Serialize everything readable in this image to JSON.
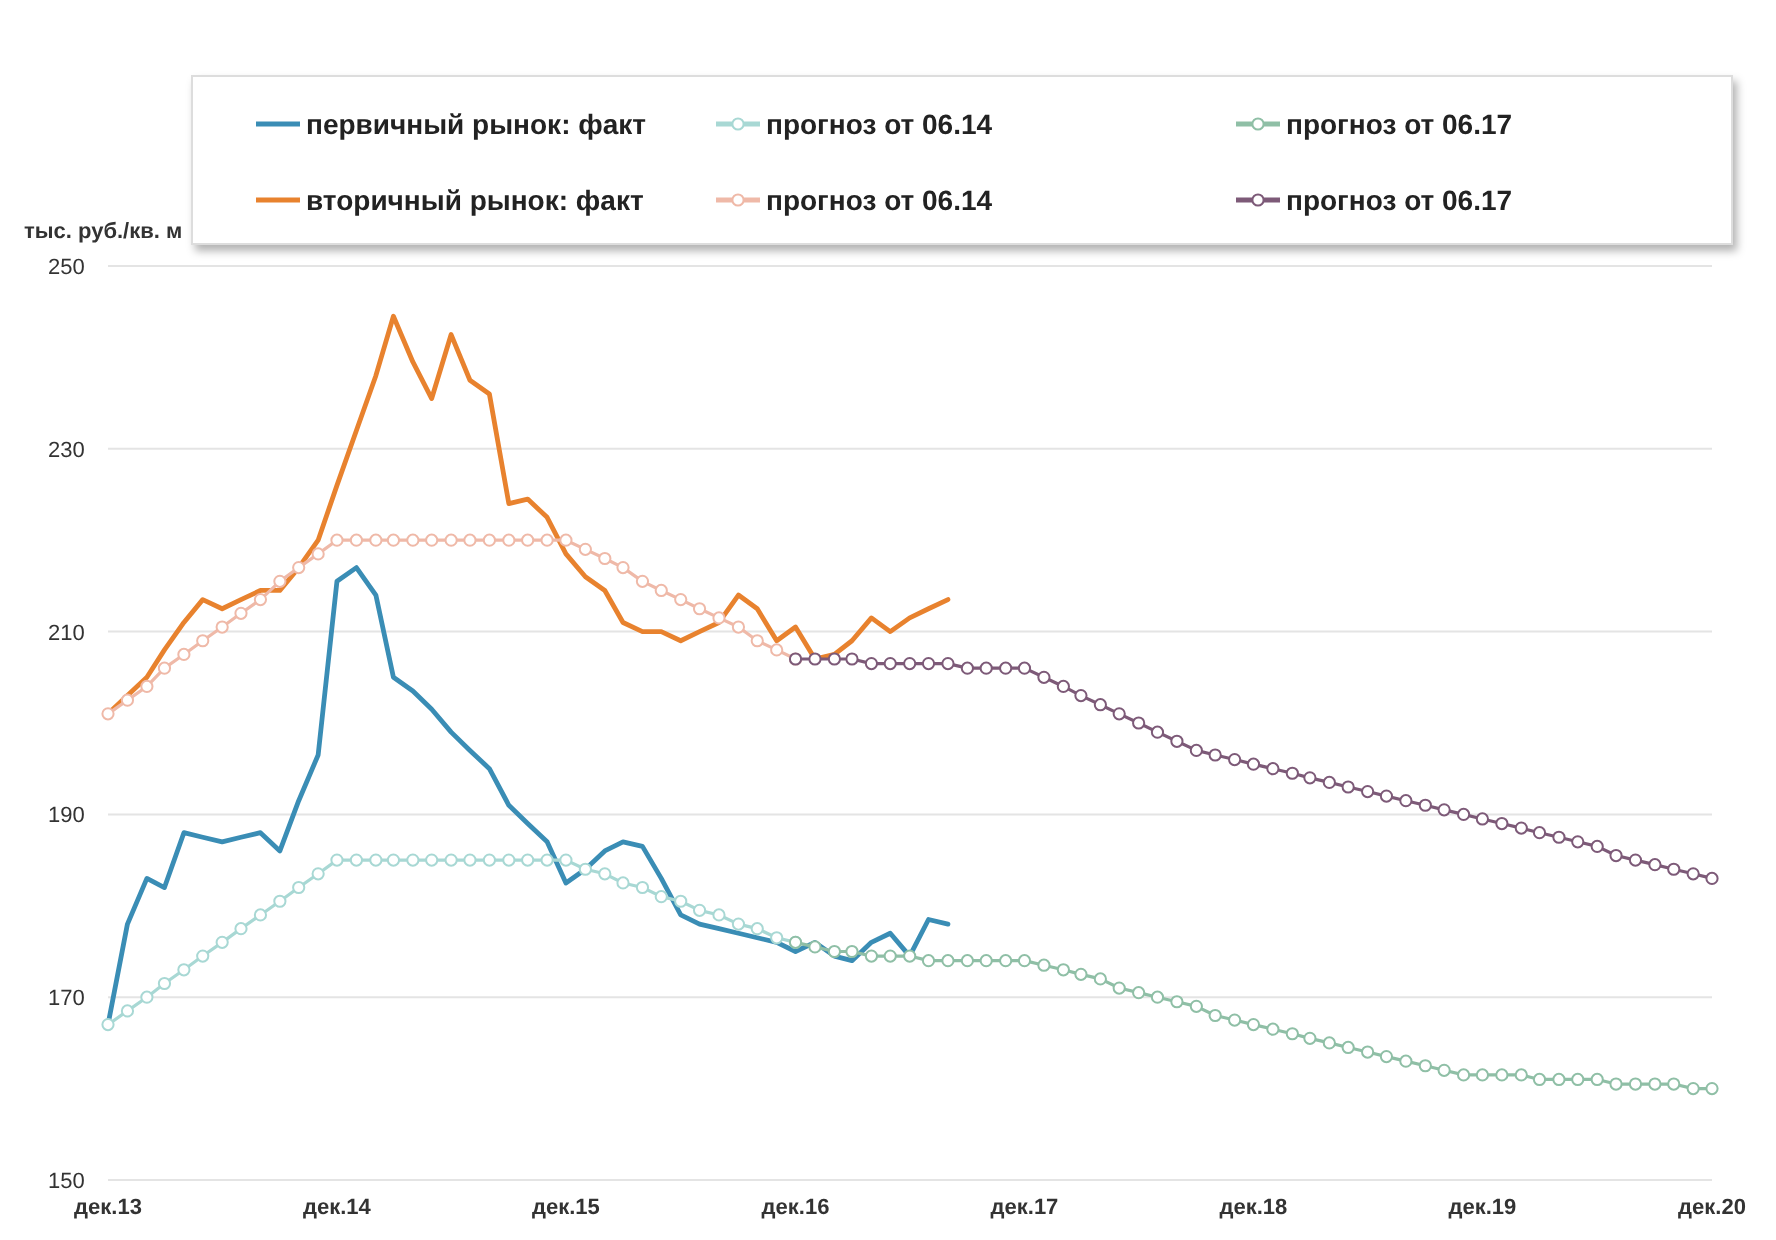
{
  "chart_data": {
    "type": "line",
    "ylabel": "тыс. руб./кв. м",
    "xlim": [
      "2013-12",
      "2020-12"
    ],
    "xticks": [
      {
        "value": "2013-12",
        "label": "дек.13"
      },
      {
        "value": "2014-12",
        "label": "дек.14"
      },
      {
        "value": "2015-12",
        "label": "дек.15"
      },
      {
        "value": "2016-12",
        "label": "дек.16"
      },
      {
        "value": "2017-12",
        "label": "дек.17"
      },
      {
        "value": "2018-12",
        "label": "дек.18"
      },
      {
        "value": "2019-12",
        "label": "дек.19"
      },
      {
        "value": "2020-12",
        "label": "дек.20"
      }
    ],
    "ylim": [
      150,
      250
    ],
    "yticks": [
      150,
      170,
      190,
      210,
      230,
      250
    ],
    "grid": "y",
    "legend": "top",
    "line_style": "solid",
    "series": [
      {
        "name": "первичный рынок: факт",
        "color": "#3a8db5",
        "marker": "none",
        "x": [
          "2013-12",
          "2014-01",
          "2014-02",
          "2014-03",
          "2014-04",
          "2014-05",
          "2014-06",
          "2014-07",
          "2014-08",
          "2014-09",
          "2014-10",
          "2014-11",
          "2014-12",
          "2015-01",
          "2015-02",
          "2015-03",
          "2015-04",
          "2015-05",
          "2015-06",
          "2015-07",
          "2015-08",
          "2015-09",
          "2015-10",
          "2015-11",
          "2015-12",
          "2016-01",
          "2016-02",
          "2016-03",
          "2016-04",
          "2016-05",
          "2016-06",
          "2016-07",
          "2016-08",
          "2016-09",
          "2016-10",
          "2016-11",
          "2016-12",
          "2017-01",
          "2017-02",
          "2017-03",
          "2017-04",
          "2017-05",
          "2017-06",
          "2017-07",
          "2017-08"
        ],
        "values": [
          167,
          178,
          183,
          182,
          188,
          187.5,
          187,
          187.5,
          188,
          186,
          191.5,
          196.5,
          215.5,
          217,
          214,
          205,
          203.5,
          201.5,
          199,
          197,
          195,
          191,
          189,
          187,
          182.5,
          184,
          186,
          187,
          186.5,
          183,
          179,
          178,
          177.5,
          177,
          176.5,
          176,
          175,
          176,
          174.5,
          174,
          176,
          177,
          174.5,
          178.5,
          178
        ]
      },
      {
        "name": "прогноз от 06.14",
        "color": "#a8d8d4",
        "marker": "circle",
        "x": [
          "2013-12",
          "2014-01",
          "2014-02",
          "2014-03",
          "2014-04",
          "2014-05",
          "2014-06",
          "2014-07",
          "2014-08",
          "2014-09",
          "2014-10",
          "2014-11",
          "2014-12",
          "2015-01",
          "2015-02",
          "2015-03",
          "2015-04",
          "2015-05",
          "2015-06",
          "2015-07",
          "2015-08",
          "2015-09",
          "2015-10",
          "2015-11",
          "2015-12",
          "2016-01",
          "2016-02",
          "2016-03",
          "2016-04",
          "2016-05",
          "2016-06",
          "2016-07",
          "2016-08",
          "2016-09",
          "2016-10",
          "2016-11",
          "2016-12"
        ],
        "values": [
          167,
          168.5,
          170,
          171.5,
          173,
          174.5,
          176,
          177.5,
          179,
          180.5,
          182,
          183.5,
          185,
          185,
          185,
          185,
          185,
          185,
          185,
          185,
          185,
          185,
          185,
          185,
          185,
          184,
          183.5,
          182.5,
          182,
          181,
          180.5,
          179.5,
          179,
          178,
          177.5,
          176.5,
          176
        ]
      },
      {
        "name": "прогноз от 06.17",
        "color": "#8fbfa6",
        "marker": "circle",
        "x": [
          "2016-12",
          "2017-01",
          "2017-02",
          "2017-03",
          "2017-04",
          "2017-05",
          "2017-06",
          "2017-07",
          "2017-08",
          "2017-09",
          "2017-10",
          "2017-11",
          "2017-12",
          "2018-01",
          "2018-02",
          "2018-03",
          "2018-04",
          "2018-05",
          "2018-06",
          "2018-07",
          "2018-08",
          "2018-09",
          "2018-10",
          "2018-11",
          "2018-12",
          "2019-01",
          "2019-02",
          "2019-03",
          "2019-04",
          "2019-05",
          "2019-06",
          "2019-07",
          "2019-08",
          "2019-09",
          "2019-10",
          "2019-11",
          "2019-12",
          "2020-01",
          "2020-02",
          "2020-03",
          "2020-04",
          "2020-05",
          "2020-06",
          "2020-07",
          "2020-08",
          "2020-09",
          "2020-10",
          "2020-11",
          "2020-12"
        ],
        "values": [
          176,
          175.5,
          175,
          175,
          174.5,
          174.5,
          174.5,
          174,
          174,
          174,
          174,
          174,
          174,
          173.5,
          173,
          172.5,
          172,
          171,
          170.5,
          170,
          169.5,
          169,
          168,
          167.5,
          167,
          166.5,
          166,
          165.5,
          165,
          164.5,
          164,
          163.5,
          163,
          162.5,
          162,
          161.5,
          161.5,
          161.5,
          161.5,
          161,
          161,
          161,
          161,
          160.5,
          160.5,
          160.5,
          160.5,
          160,
          160
        ]
      },
      {
        "name": "вторичный рынок: факт",
        "color": "#e8822e",
        "marker": "none",
        "x": [
          "2013-12",
          "2014-01",
          "2014-02",
          "2014-03",
          "2014-04",
          "2014-05",
          "2014-06",
          "2014-07",
          "2014-08",
          "2014-09",
          "2014-10",
          "2014-11",
          "2014-12",
          "2015-01",
          "2015-02",
          "2015-03",
          "2015-04",
          "2015-05",
          "2015-06",
          "2015-07",
          "2015-08",
          "2015-09",
          "2015-10",
          "2015-11",
          "2015-12",
          "2016-01",
          "2016-02",
          "2016-03",
          "2016-04",
          "2016-05",
          "2016-06",
          "2016-07",
          "2016-08",
          "2016-09",
          "2016-10",
          "2016-11",
          "2016-12",
          "2017-01",
          "2017-02",
          "2017-03",
          "2017-04",
          "2017-05",
          "2017-06",
          "2017-07",
          "2017-08"
        ],
        "values": [
          201,
          203,
          205,
          208,
          211,
          213.5,
          212.5,
          213.5,
          214.5,
          214.5,
          217,
          220,
          226,
          232,
          238,
          244.5,
          239.5,
          235.5,
          242.5,
          237.5,
          236,
          224,
          224.5,
          222.5,
          218.5,
          216,
          214.5,
          211,
          210,
          210,
          209,
          210,
          211,
          214,
          212.5,
          209,
          210.5,
          207,
          207.5,
          209,
          211.5,
          210,
          211.5,
          212.5,
          213.5
        ]
      },
      {
        "name": "прогноз от 06.14",
        "color": "#efb9a8",
        "marker": "circle",
        "x": [
          "2013-12",
          "2014-01",
          "2014-02",
          "2014-03",
          "2014-04",
          "2014-05",
          "2014-06",
          "2014-07",
          "2014-08",
          "2014-09",
          "2014-10",
          "2014-11",
          "2014-12",
          "2015-01",
          "2015-02",
          "2015-03",
          "2015-04",
          "2015-05",
          "2015-06",
          "2015-07",
          "2015-08",
          "2015-09",
          "2015-10",
          "2015-11",
          "2015-12",
          "2016-01",
          "2016-02",
          "2016-03",
          "2016-04",
          "2016-05",
          "2016-06",
          "2016-07",
          "2016-08",
          "2016-09",
          "2016-10",
          "2016-11",
          "2016-12"
        ],
        "values": [
          201,
          202.5,
          204,
          206,
          207.5,
          209,
          210.5,
          212,
          213.5,
          215.5,
          217,
          218.5,
          220,
          220,
          220,
          220,
          220,
          220,
          220,
          220,
          220,
          220,
          220,
          220,
          220,
          219,
          218,
          217,
          215.5,
          214.5,
          213.5,
          212.5,
          211.5,
          210.5,
          209,
          208,
          207
        ]
      },
      {
        "name": "прогноз от 06.17",
        "color": "#7d5a78",
        "marker": "circle",
        "x": [
          "2016-12",
          "2017-01",
          "2017-02",
          "2017-03",
          "2017-04",
          "2017-05",
          "2017-06",
          "2017-07",
          "2017-08",
          "2017-09",
          "2017-10",
          "2017-11",
          "2017-12",
          "2018-01",
          "2018-02",
          "2018-03",
          "2018-04",
          "2018-05",
          "2018-06",
          "2018-07",
          "2018-08",
          "2018-09",
          "2018-10",
          "2018-11",
          "2018-12",
          "2019-01",
          "2019-02",
          "2019-03",
          "2019-04",
          "2019-05",
          "2019-06",
          "2019-07",
          "2019-08",
          "2019-09",
          "2019-10",
          "2019-11",
          "2019-12",
          "2020-01",
          "2020-02",
          "2020-03",
          "2020-04",
          "2020-05",
          "2020-06",
          "2020-07",
          "2020-08",
          "2020-09",
          "2020-10",
          "2020-11",
          "2020-12"
        ],
        "values": [
          207,
          207,
          207,
          207,
          206.5,
          206.5,
          206.5,
          206.5,
          206.5,
          206,
          206,
          206,
          206,
          205,
          204,
          203,
          202,
          201,
          200,
          199,
          198,
          197,
          196.5,
          196,
          195.5,
          195,
          194.5,
          194,
          193.5,
          193,
          192.5,
          192,
          191.5,
          191,
          190.5,
          190,
          189.5,
          189,
          188.5,
          188,
          187.5,
          187,
          186.5,
          185.5,
          185,
          184.5,
          184,
          183.5,
          183
        ]
      }
    ]
  }
}
